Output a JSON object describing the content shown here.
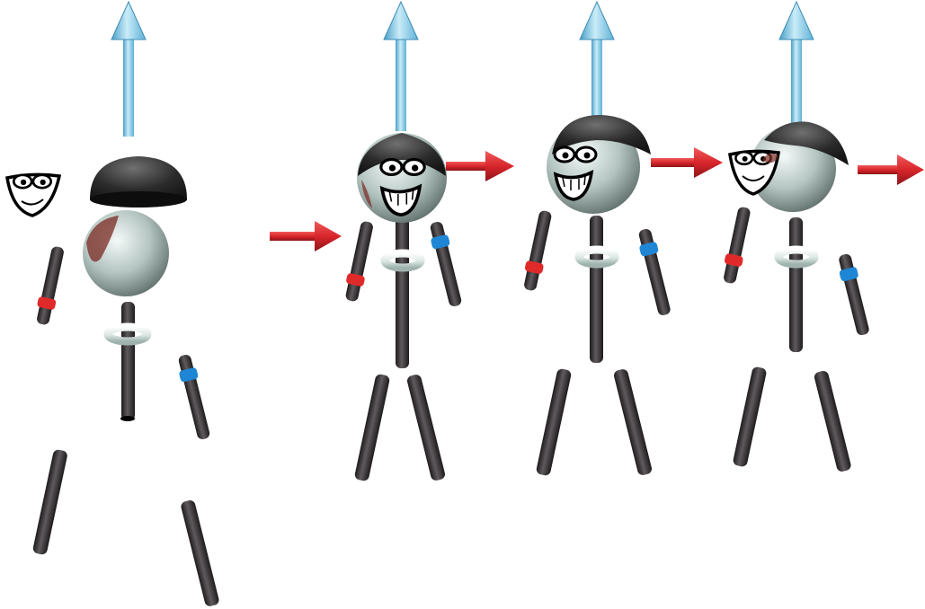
{
  "scene": {
    "description_kind": "stick-figure-assembly-sequence",
    "palette": {
      "limb": "#3a3638",
      "limb_dark": "#1e1b1d",
      "limb_light": "#6a6568",
      "head": "#b9c9c5",
      "head_light": "#f2f7f6",
      "head_dark": "#6e7e7b",
      "helmet": "#2b2b2b",
      "helmet_light": "#6a6a6a",
      "red_band": "#e02a2a",
      "blue_band": "#1f86d6",
      "ring": "#d9e6e2",
      "up_arrow": "#79bfe0",
      "up_arrow_light": "#c6e8f6",
      "right_arrow": "#d8262b",
      "blood": "#7a2a22"
    }
  }
}
